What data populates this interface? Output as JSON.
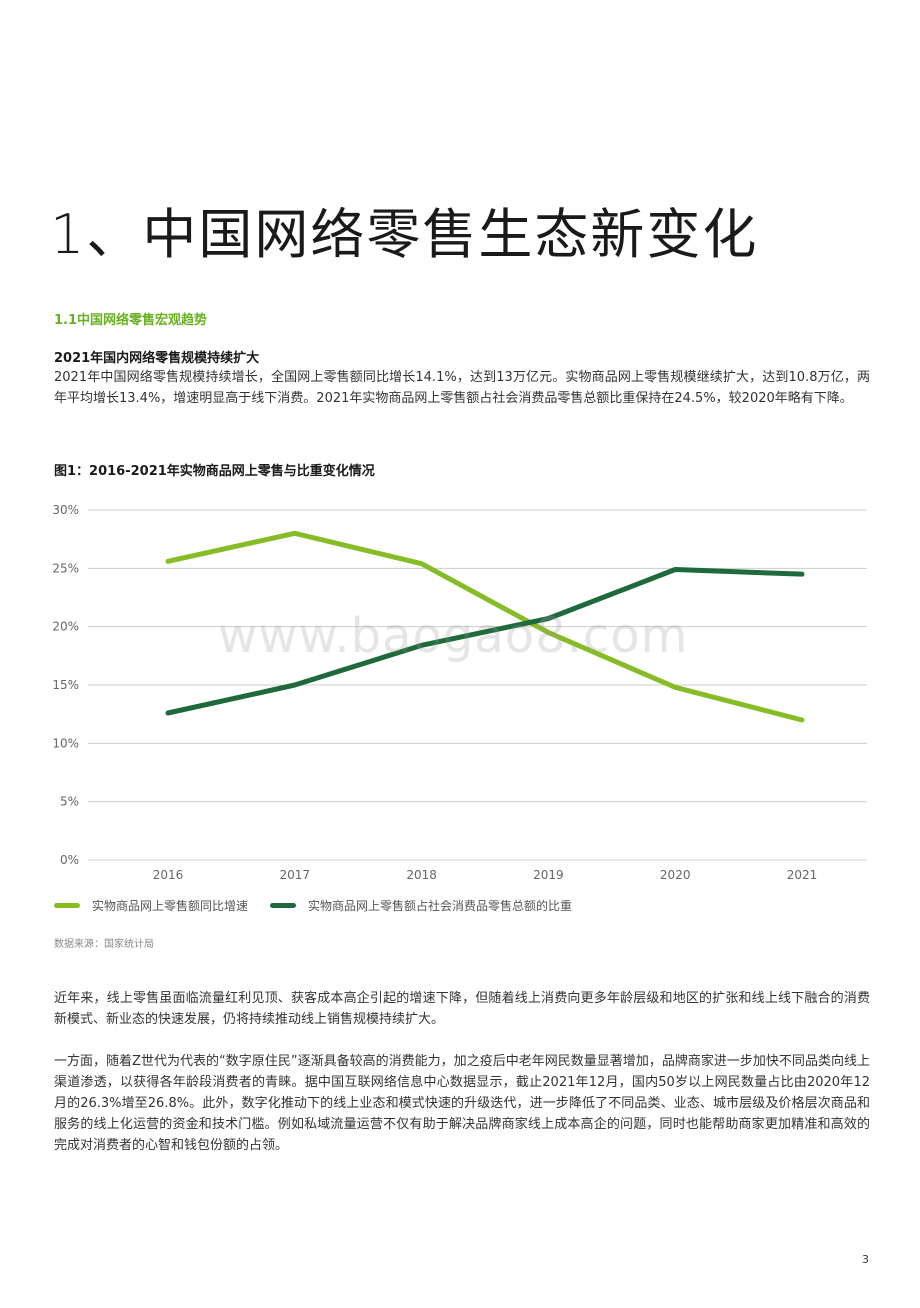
{
  "title": "1、中国网络零售生态新变化",
  "section": "1.1中国网络零售宏观趋势",
  "heading": "2021年国内网络零售规模持续扩大",
  "para1": "2021年中国网络零售规模持续增长，全国网上零售额同比增长14.1%，达到13万亿元。实物商品网上零售规模继续扩大，达到10.8万亿，两年平均增长13.4%，增速明显高于线下消费。2021年实物商品网上零售额占社会消费品零售总额比重保持在24.5%，较2020年略有下降。",
  "figure_title": "图1：2016-2021年实物商品网上零售与比重变化情况",
  "watermark": "www.baogao8.com",
  "source": "数据来源：国家统计局",
  "para2": "近年来，线上零售虽面临流量红利见顶、获客成本高企引起的增速下降，但随着线上消费向更多年龄层级和地区的扩张和线上线下融合的消费新模式、新业态的快速发展，仍将持续推动线上销售规模持续扩大。",
  "para3": "一方面，随着Z世代为代表的“数字原住民”逐渐具备较高的消费能力，加之疫后中老年网民数量显著增加，品牌商家进一步加快不同品类向线上渠道渗透，以获得各年龄段消费者的青睐。据中国互联网络信息中心数据显示，截止2021年12月，国内50岁以上网民数量占比由2020年12月的26.3%增至26.8%。此外，数字化推动下的线上业态和模式快速的升级迭代，进一步降低了不同品类、业态、城市层级及价格层次商品和服务的线上化运营的资金和技术门槛。例如私域流量运营不仅有助于解决品牌商家线上成本高企的问题，同时也能帮助商家更加精准和高效的完成对消费者的心智和钱包份额的占领。",
  "page_number": "3",
  "chart_data": {
    "type": "line",
    "categories": [
      "2016",
      "2017",
      "2018",
      "2019",
      "2020",
      "2021"
    ],
    "y_ticks": [
      "0%",
      "5%",
      "10%",
      "15%",
      "20%",
      "25%",
      "30%"
    ],
    "ylim": [
      0,
      30
    ],
    "grid": true,
    "legend_position": "bottom-left",
    "series": [
      {
        "name": "实物商品网上零售额同比增速",
        "color": "#86bc25",
        "values": [
          25.6,
          28.0,
          25.4,
          19.5,
          14.8,
          12.0
        ]
      },
      {
        "name": "实物商品网上零售额占社会消费品零售总额的比重",
        "color": "#1e6a3c",
        "values": [
          12.6,
          15.0,
          18.4,
          20.7,
          24.9,
          24.5
        ]
      }
    ]
  }
}
